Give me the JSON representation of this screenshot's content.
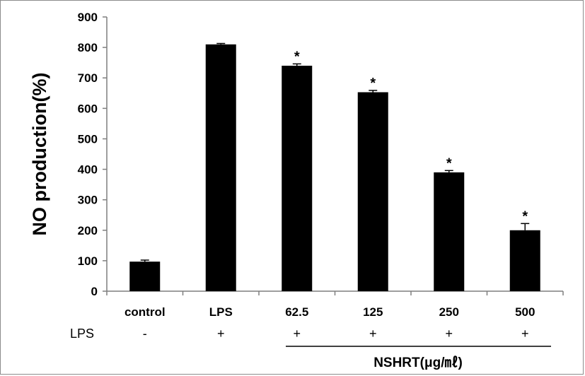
{
  "chart_data": {
    "type": "bar",
    "ylabel": "NO production(%)",
    "ylim": [
      0,
      900
    ],
    "yticks": [
      "0",
      "100",
      "200",
      "300",
      "400",
      "500",
      "600",
      "700",
      "800",
      "900"
    ],
    "categories": [
      "control",
      "LPS",
      "62.5",
      "125",
      "250",
      "500"
    ],
    "values": [
      97,
      810,
      740,
      653,
      390,
      200
    ],
    "errors": [
      5,
      3,
      6,
      6,
      6,
      22
    ],
    "significance": [
      "",
      "",
      "*",
      "*",
      "*",
      "*"
    ],
    "bar_color": "#000000",
    "grid": false
  },
  "treatment_row": {
    "label": "LPS",
    "signs": [
      "-",
      "+",
      "+",
      "+",
      "+",
      "+"
    ]
  },
  "group_label": "NSHRT(μg/㎖)"
}
